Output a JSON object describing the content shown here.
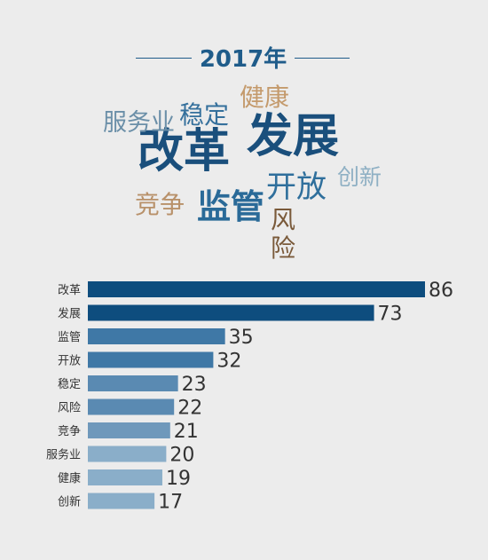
{
  "header": {
    "title": "2017年"
  },
  "word_cloud": [
    {
      "text": "改革",
      "color": "#1a4f7c"
    },
    {
      "text": "发展",
      "color": "#1a4f7c"
    },
    {
      "text": "监管",
      "color": "#2a6a98"
    },
    {
      "text": "开放",
      "color": "#2f6f9c"
    },
    {
      "text": "稳定",
      "color": "#35709c"
    },
    {
      "text": "风险",
      "color": "#7a5a3a"
    },
    {
      "text": "竞争",
      "color": "#b8916a"
    },
    {
      "text": "服务业",
      "color": "#6b8fa8"
    },
    {
      "text": "健康",
      "color": "#c49a6c"
    },
    {
      "text": "创新",
      "color": "#8fb0c4"
    }
  ],
  "chart_data": {
    "type": "bar",
    "orientation": "horizontal",
    "categories": [
      "改革",
      "发展",
      "监管",
      "开放",
      "稳定",
      "风险",
      "竞争",
      "服务业",
      "健康",
      "创新"
    ],
    "values": [
      86,
      73,
      35,
      32,
      23,
      22,
      21,
      20,
      19,
      17
    ],
    "bar_colors": [
      "#0e4d7e",
      "#0e4d7e",
      "#3f78a6",
      "#3f78a6",
      "#5a8ab2",
      "#5a8ab2",
      "#6f98bb",
      "#8aaec9",
      "#8aaec9",
      "#8aaec9"
    ],
    "xlim": [
      0,
      86
    ],
    "grid": false
  }
}
